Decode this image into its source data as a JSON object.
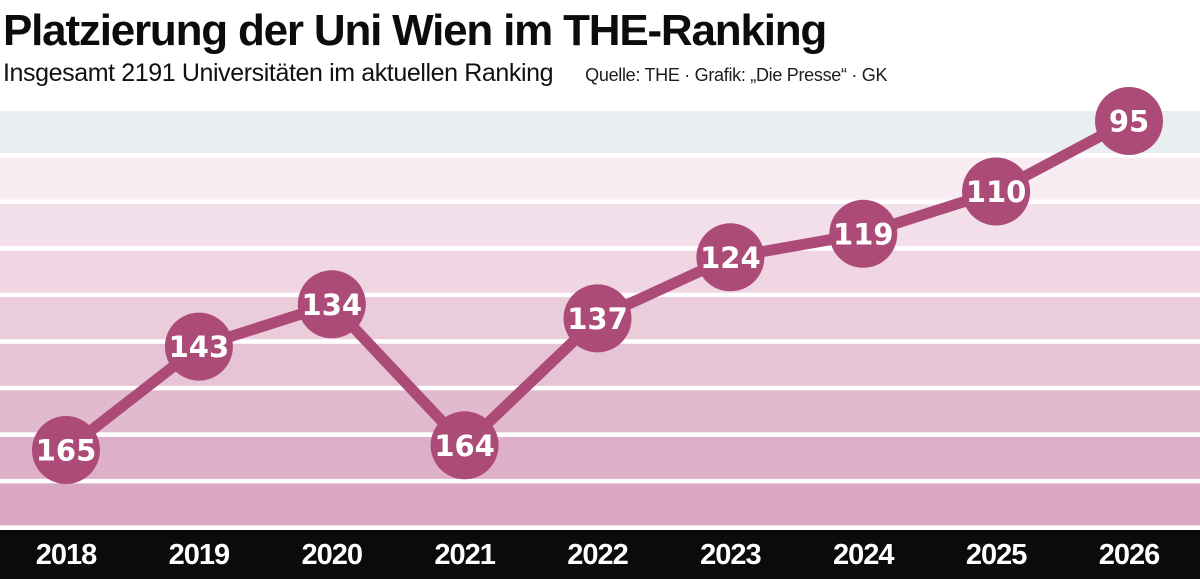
{
  "header": {
    "title": "Platzierung der Uni Wien im THE-Ranking",
    "subtitle": "Insgesamt 2191 Universitäten im aktuellen Ranking",
    "source": "Quelle: THE · Grafik: „Die Presse“ · GK"
  },
  "chart_data": {
    "type": "line",
    "title": "Platzierung der Uni Wien im THE-Ranking",
    "subtitle": "Insgesamt 2191 Universitäten im aktuellen Ranking",
    "source": "Quelle: THE · Grafik: „Die Presse“ · GK",
    "categories": [
      "2018",
      "2019",
      "2020",
      "2021",
      "2022",
      "2023",
      "2024",
      "2025",
      "2026"
    ],
    "values": [
      165,
      143,
      134,
      164,
      137,
      124,
      119,
      110,
      95
    ],
    "value_labels_shown": true,
    "ylim": [
      95,
      165
    ],
    "y_axis_inverted": true,
    "xlabel": "",
    "ylabel": "",
    "grid": "horizontal-bands",
    "legend": "none",
    "colors": {
      "line": "#ac4b77",
      "marker_fill": "#ac4b77",
      "marker_text": "#ffffff",
      "axis_bar": "#0b0b0b",
      "axis_text": "#ffffff",
      "band_gap": "#ffffff",
      "band_colors": [
        "#e9eef1",
        "#f8ecf2",
        "#f3dfe9",
        "#efd6e2",
        "#ebccdb",
        "#e6c3d5",
        "#e2bace",
        "#deb0c8",
        "#d9a7c2"
      ]
    }
  }
}
